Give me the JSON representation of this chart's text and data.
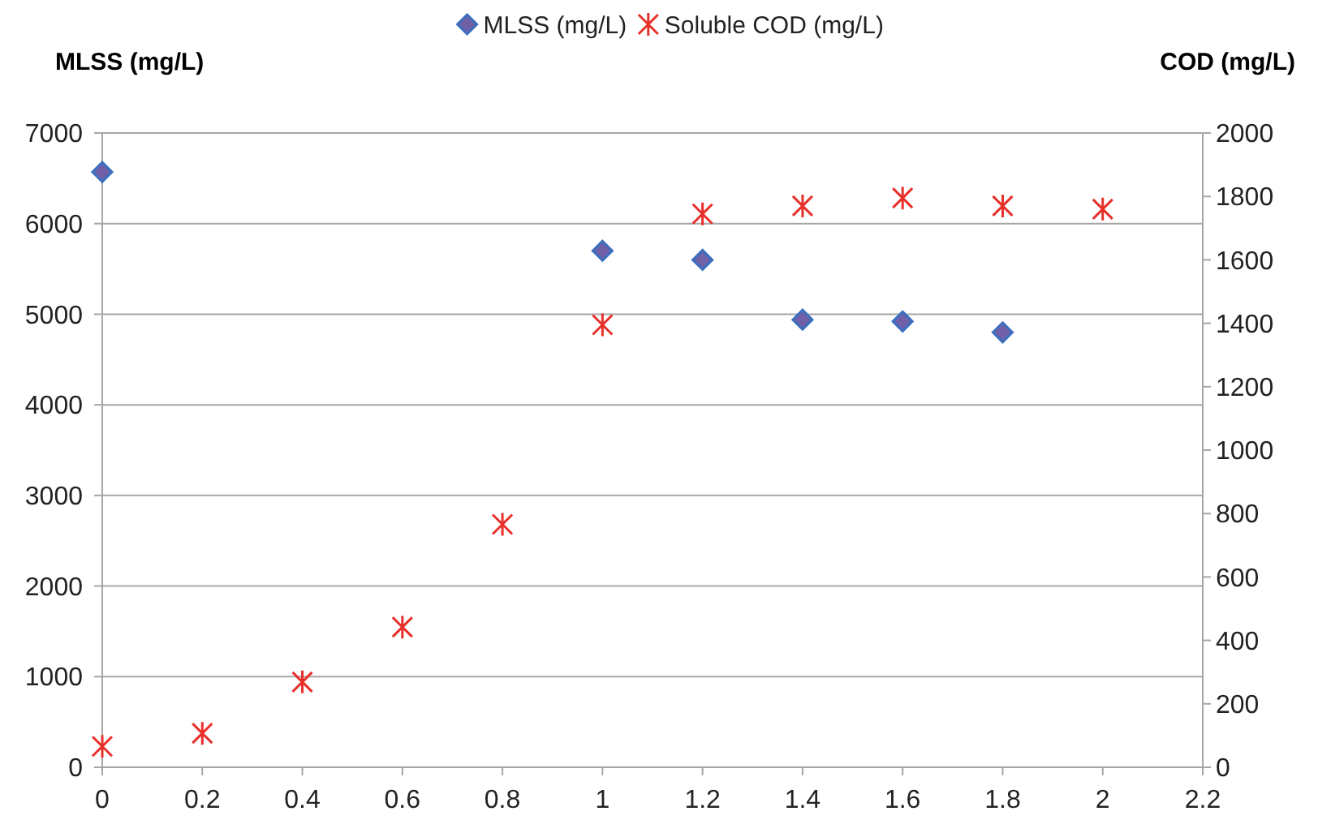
{
  "chart_data": {
    "type": "scatter",
    "ylabel": "MLSS (mg/L)",
    "y2label": "COD (mg/L)",
    "x": [
      0,
      0.2,
      0.4,
      0.6,
      0.8,
      1,
      1.2,
      1.4,
      1.6,
      1.8,
      2
    ],
    "series": [
      {
        "name": "MLSS (mg/L)",
        "color": "#7060a8",
        "marker": "diamond",
        "values": [
          6570,
          null,
          null,
          null,
          null,
          5700,
          5600,
          4940,
          4920,
          4800,
          null
        ]
      },
      {
        "name": "Soluble COD (mg/L)",
        "color": "#e8302a",
        "marker": "cross",
        "axis": "y2",
        "values": [
          66,
          107,
          269,
          442,
          766,
          1395,
          1745,
          1770,
          1795,
          1770,
          1760
        ]
      }
    ],
    "xlim": [
      0,
      2.2
    ],
    "xticks": [
      0,
      0.2,
      0.4,
      0.6,
      0.8,
      1,
      1.2,
      1.4,
      1.6,
      1.8,
      2,
      2.2
    ],
    "ylim": [
      0,
      7000
    ],
    "yticks": [
      0,
      1000,
      2000,
      3000,
      4000,
      5000,
      6000,
      7000
    ],
    "y2lim": [
      0,
      2000
    ],
    "y2ticks": [
      0,
      200,
      400,
      600,
      800,
      1000,
      1200,
      1400,
      1600,
      1800,
      2000
    ],
    "grid": "y",
    "legend": "top"
  }
}
